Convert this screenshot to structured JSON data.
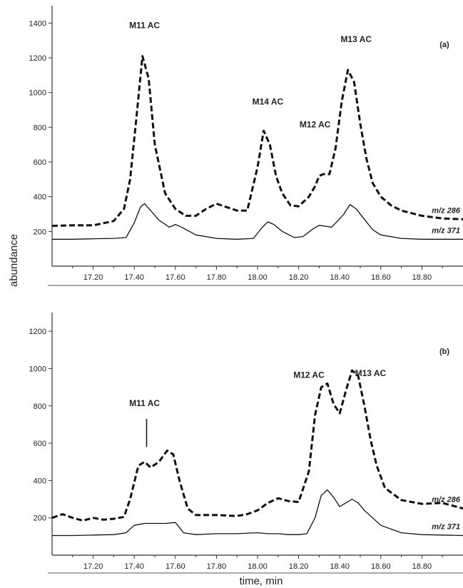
{
  "figure": {
    "y_axis_title": "abundance",
    "x_axis_title": "time, min"
  },
  "chart_data": [
    {
      "type": "line",
      "panel_label": "(a)",
      "xlim": [
        17.0,
        19.0
      ],
      "ylim": [
        0,
        1500
      ],
      "x_ticks": [
        "17.20",
        "17.40",
        "17.60",
        "17.80",
        "18.00",
        "18.20",
        "18.40",
        "18.60",
        "18.80"
      ],
      "y_ticks": [
        "200",
        "400",
        "600",
        "800",
        "1000",
        "1200",
        "1400"
      ],
      "grid": false,
      "annotations": [
        {
          "text": "M11 AC",
          "x": 17.45,
          "y": 1370
        },
        {
          "text": "M14 AC",
          "x": 18.05,
          "y": 930
        },
        {
          "text": "M12 AC",
          "x": 18.28,
          "y": 800
        },
        {
          "text": "M13 AC",
          "x": 18.48,
          "y": 1290
        }
      ],
      "series": [
        {
          "name": "m/z 286",
          "style": "dashed",
          "x": [
            17.0,
            17.1,
            17.2,
            17.3,
            17.35,
            17.38,
            17.41,
            17.44,
            17.47,
            17.5,
            17.55,
            17.6,
            17.65,
            17.7,
            17.75,
            17.8,
            17.85,
            17.9,
            17.95,
            18.0,
            18.03,
            18.06,
            18.09,
            18.12,
            18.16,
            18.2,
            18.25,
            18.28,
            18.3,
            18.32,
            18.35,
            18.38,
            18.41,
            18.44,
            18.47,
            18.5,
            18.53,
            18.56,
            18.6,
            18.65,
            18.7,
            18.8,
            18.9,
            19.0
          ],
          "y": [
            232,
            235,
            235,
            260,
            330,
            500,
            850,
            1210,
            1080,
            700,
            420,
            330,
            290,
            290,
            330,
            360,
            340,
            320,
            320,
            570,
            780,
            700,
            520,
            420,
            350,
            345,
            400,
            460,
            520,
            530,
            530,
            680,
            950,
            1130,
            1060,
            820,
            620,
            480,
            400,
            350,
            320,
            290,
            275,
            270
          ]
        },
        {
          "name": "m/z 371",
          "style": "solid",
          "x": [
            17.0,
            17.1,
            17.2,
            17.3,
            17.36,
            17.4,
            17.43,
            17.45,
            17.48,
            17.52,
            17.57,
            17.6,
            17.63,
            17.7,
            17.8,
            17.9,
            17.98,
            18.02,
            18.05,
            18.08,
            18.12,
            18.18,
            18.22,
            18.27,
            18.3,
            18.33,
            18.36,
            18.39,
            18.42,
            18.45,
            18.48,
            18.52,
            18.56,
            18.6,
            18.7,
            18.8,
            18.9,
            19.0
          ],
          "y": [
            155,
            155,
            158,
            160,
            165,
            250,
            340,
            360,
            320,
            265,
            225,
            240,
            225,
            180,
            160,
            155,
            160,
            220,
            255,
            240,
            200,
            165,
            170,
            215,
            235,
            230,
            225,
            260,
            300,
            355,
            330,
            270,
            210,
            180,
            160,
            155,
            155,
            155
          ]
        }
      ]
    },
    {
      "type": "line",
      "panel_label": "(b)",
      "xlim": [
        17.0,
        19.0
      ],
      "ylim": [
        0,
        1300
      ],
      "x_ticks": [
        "17.20",
        "17.40",
        "17.60",
        "17.80",
        "18.00",
        "18.20",
        "18.40",
        "18.60",
        "18.80"
      ],
      "y_ticks": [
        "200",
        "400",
        "600",
        "800",
        "1000",
        "1200"
      ],
      "grid": false,
      "annotations": [
        {
          "text": "M11 AC",
          "x": 17.45,
          "y": 800
        },
        {
          "text": "M12 AC",
          "x": 18.25,
          "y": 950
        },
        {
          "text": "M13 AC",
          "x": 18.55,
          "y": 960
        }
      ],
      "marker_line": {
        "x": 17.46,
        "y_from": 580,
        "y_to": 730
      },
      "series": [
        {
          "name": "m/z 286",
          "style": "dashed",
          "x": [
            17.0,
            17.05,
            17.1,
            17.15,
            17.2,
            17.25,
            17.3,
            17.35,
            17.38,
            17.42,
            17.45,
            17.48,
            17.52,
            17.56,
            17.59,
            17.62,
            17.66,
            17.7,
            17.8,
            17.9,
            17.95,
            18.0,
            18.05,
            18.1,
            18.15,
            18.2,
            18.25,
            18.28,
            18.31,
            18.34,
            18.37,
            18.4,
            18.43,
            18.46,
            18.49,
            18.52,
            18.55,
            18.58,
            18.62,
            18.7,
            18.8,
            18.9,
            19.0
          ],
          "y": [
            200,
            220,
            200,
            185,
            200,
            190,
            195,
            205,
            300,
            480,
            500,
            470,
            500,
            560,
            540,
            400,
            250,
            215,
            215,
            210,
            220,
            240,
            280,
            305,
            290,
            285,
            450,
            750,
            900,
            920,
            810,
            760,
            880,
            990,
            960,
            800,
            620,
            480,
            360,
            295,
            275,
            280,
            250
          ]
        },
        {
          "name": "m/z 371",
          "style": "solid",
          "x": [
            17.0,
            17.1,
            17.2,
            17.3,
            17.36,
            17.4,
            17.45,
            17.5,
            17.55,
            17.6,
            17.64,
            17.7,
            17.8,
            17.9,
            17.95,
            18.0,
            18.05,
            18.1,
            18.15,
            18.2,
            18.24,
            18.28,
            18.31,
            18.34,
            18.37,
            18.4,
            18.43,
            18.46,
            18.49,
            18.52,
            18.56,
            18.6,
            18.7,
            18.8,
            18.9,
            19.0
          ],
          "y": [
            105,
            105,
            108,
            110,
            120,
            160,
            170,
            170,
            170,
            175,
            120,
            110,
            115,
            115,
            118,
            120,
            115,
            115,
            110,
            110,
            115,
            200,
            320,
            350,
            310,
            260,
            280,
            300,
            280,
            240,
            200,
            160,
            120,
            110,
            108,
            105
          ]
        }
      ]
    }
  ]
}
